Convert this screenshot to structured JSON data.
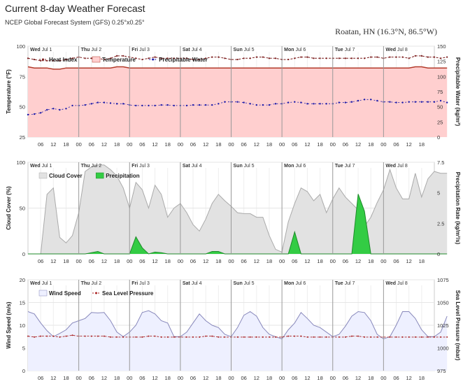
{
  "header": {
    "title": "Current 8-day Weather Forecast",
    "subtitle": "NCEP Global Forecast System (GFS) 0.25°x0.25°",
    "location": "Roatan, HN (16.3°N, 86.5°W)"
  },
  "days": [
    {
      "dow": "Wed",
      "date": "Jul 1"
    },
    {
      "dow": "Thu",
      "date": "Jul 2"
    },
    {
      "dow": "Fri",
      "date": "Jul 3"
    },
    {
      "dow": "Sat",
      "date": "Jul 4"
    },
    {
      "dow": "Sun",
      "date": "Jul 5"
    },
    {
      "dow": "Mon",
      "date": "Jul 6"
    },
    {
      "dow": "Tue",
      "date": "Jul 7"
    },
    {
      "dow": "Wed",
      "date": "Jul 8"
    }
  ],
  "hour_ticks": [
    "06",
    "12",
    "18",
    "00"
  ],
  "colors": {
    "heat_index": "#7a1a1a",
    "temperature_fill": "#ffcfcf",
    "temperature_line": "#b23a2a",
    "precipitable_water": "#1a1aaa",
    "cloud_fill": "#e2e2e2",
    "cloud_line": "#aaaaaa",
    "precip_fill": "#33cc44",
    "precip_line": "#1e8a2a",
    "wind_fill": "#eef0ff",
    "wind_line": "#8888bb",
    "pressure": "#aa2222"
  },
  "chart_data": [
    {
      "type": "line",
      "name": "temperature-panel",
      "x_start": "2020-07-01T00:00",
      "x_step_hours": 3,
      "ylabel": "Temperature (°F)",
      "ylim": [
        25,
        100
      ],
      "y_ticks": [
        25,
        50,
        75,
        100
      ],
      "y2label": "Precipitable Water (kg/m²)",
      "y2lim": [
        0,
        150
      ],
      "y2_ticks": [
        0,
        25,
        50,
        75,
        100,
        125,
        150
      ],
      "legend": [
        "Heat Index",
        "Temperature",
        "Precipitable Water"
      ],
      "legend_position": "top-left",
      "series": [
        {
          "name": "Heat Index",
          "axis": "left",
          "values": [
            90,
            89,
            88,
            88,
            88,
            88,
            89,
            90,
            91,
            90,
            90,
            90,
            89,
            90,
            92,
            92,
            91,
            90,
            89,
            90,
            91,
            90,
            90,
            90,
            90,
            90,
            89,
            89,
            90,
            91,
            91,
            90,
            89,
            89,
            90,
            90,
            91,
            91,
            90,
            90,
            89,
            89,
            90,
            91,
            91,
            90,
            90,
            90,
            90,
            90,
            90,
            90,
            90,
            90,
            91,
            91,
            90,
            91,
            91,
            91,
            90,
            92,
            92,
            91,
            91,
            90,
            91
          ]
        },
        {
          "name": "Temperature",
          "axis": "left",
          "values": [
            83,
            82,
            82,
            82,
            81,
            81,
            82,
            82,
            82,
            82,
            82,
            82,
            82,
            82,
            83,
            83,
            82,
            82,
            82,
            82,
            82,
            82,
            82,
            82,
            82,
            82,
            82,
            82,
            82,
            82,
            82,
            82,
            82,
            82,
            82,
            82,
            82,
            82,
            82,
            82,
            82,
            82,
            82,
            82,
            82,
            82,
            82,
            82,
            82,
            82,
            82,
            82,
            82,
            82,
            82,
            82,
            82,
            82,
            82,
            82,
            82,
            83,
            83,
            82,
            82,
            82,
            82
          ]
        },
        {
          "name": "Precipitable Water",
          "axis": "right",
          "values": [
            37,
            38,
            40,
            45,
            47,
            45,
            47,
            52,
            52,
            53,
            55,
            57,
            57,
            56,
            55,
            55,
            53,
            52,
            52,
            52,
            52,
            53,
            53,
            52,
            52,
            52,
            53,
            53,
            53,
            53,
            55,
            58,
            58,
            58,
            57,
            55,
            53,
            53,
            53,
            55,
            55,
            57,
            58,
            57,
            55,
            55,
            55,
            55,
            55,
            57,
            57,
            58,
            60,
            62,
            62,
            60,
            58,
            58,
            57,
            57,
            58,
            58,
            58,
            58,
            58,
            60,
            57
          ]
        }
      ]
    },
    {
      "type": "area",
      "name": "cloud-panel",
      "x_start": "2020-07-01T00:00",
      "x_step_hours": 3,
      "ylabel": "Cloud Cover (%)",
      "ylim": [
        0,
        100
      ],
      "y_ticks": [
        0,
        50,
        100
      ],
      "y2label": "Precipitation Rate (kg/m²/s)",
      "y2lim": [
        0,
        7.5
      ],
      "y2_ticks": [
        0,
        2.5,
        5,
        7.5
      ],
      "legend": [
        "Cloud Cover",
        "Precipitation"
      ],
      "legend_position": "top-left",
      "series": [
        {
          "name": "Cloud Cover",
          "axis": "left",
          "values": [
            0,
            0,
            0,
            65,
            72,
            18,
            12,
            20,
            45,
            90,
            95,
            97,
            97,
            92,
            85,
            72,
            50,
            78,
            70,
            50,
            75,
            65,
            40,
            50,
            55,
            45,
            32,
            25,
            38,
            55,
            65,
            58,
            52,
            45,
            44,
            44,
            40,
            40,
            20,
            5,
            2,
            35,
            55,
            72,
            68,
            58,
            65,
            45,
            60,
            72,
            62,
            55,
            48,
            30,
            40,
            56,
            70,
            92,
            72,
            60,
            60,
            88,
            62,
            82,
            90,
            88,
            88
          ]
        },
        {
          "name": "Precipitation",
          "axis": "right",
          "values": [
            0,
            0,
            0,
            0,
            0,
            0,
            0,
            0,
            0,
            0,
            0.1,
            0.2,
            0,
            0,
            0,
            0,
            0,
            1.4,
            0.5,
            0,
            0.15,
            0.1,
            0,
            0,
            0,
            0,
            0,
            0,
            0,
            0.2,
            0.2,
            0,
            0,
            0,
            0,
            0,
            0,
            0,
            0,
            0,
            0,
            0,
            1.8,
            0,
            0,
            0,
            0,
            0,
            0,
            0,
            0,
            0,
            4.9,
            3.5,
            0,
            0,
            0,
            0,
            0,
            0,
            0,
            0,
            0,
            0,
            0,
            0,
            0
          ]
        }
      ]
    },
    {
      "type": "area",
      "name": "wind-panel",
      "x_start": "2020-07-01T00:00",
      "x_step_hours": 3,
      "ylabel": "Wind Speed (m/s)",
      "ylim": [
        0,
        20
      ],
      "y_ticks": [
        0,
        5,
        10,
        15,
        20
      ],
      "y2label": "Sea Level Pressure (mbar)",
      "y2lim": [
        975,
        1075
      ],
      "y2_ticks": [
        975,
        1000,
        1025,
        1050,
        1075
      ],
      "legend": [
        "Wind Speed",
        "Sea Level Pressure"
      ],
      "legend_position": "top-left",
      "series": [
        {
          "name": "Wind Speed",
          "axis": "left",
          "values": [
            13,
            12.5,
            10.5,
            8.8,
            7.5,
            8.2,
            9,
            10.5,
            11,
            11.5,
            12.8,
            12.7,
            12.8,
            11,
            8.5,
            7.5,
            8.5,
            10,
            12.8,
            13.2,
            12.5,
            11,
            10.5,
            7.5,
            7.5,
            8.5,
            10.5,
            12.5,
            11,
            10,
            9.5,
            8,
            7.5,
            9.5,
            12.2,
            13,
            12,
            9.5,
            8,
            7.5,
            7,
            9,
            10.5,
            12.8,
            11.5,
            10,
            9.5,
            8.5,
            7.5,
            8,
            9.8,
            12,
            13,
            12.8,
            11,
            8,
            7,
            7.5,
            10,
            13,
            13,
            11.5,
            9,
            7.5,
            7.5,
            8.5,
            12
          ]
        },
        {
          "name": "Sea Level Pressure",
          "axis": "right",
          "values": [
            1013,
            1012,
            1013,
            1013,
            1013,
            1012,
            1013,
            1014,
            1013,
            1013,
            1013,
            1013,
            1013,
            1012,
            1012,
            1012,
            1012,
            1012,
            1012,
            1013,
            1013,
            1012,
            1012,
            1012,
            1012,
            1012,
            1012,
            1012,
            1013,
            1013,
            1012,
            1012,
            1012,
            1012,
            1012,
            1012,
            1012,
            1012,
            1012,
            1012,
            1012,
            1013,
            1013,
            1013,
            1012,
            1012,
            1012,
            1012,
            1012,
            1012,
            1012,
            1013,
            1013,
            1012,
            1012,
            1012,
            1012,
            1012,
            1012,
            1012,
            1012,
            1012,
            1012,
            1012,
            1012,
            1012,
            1012
          ]
        }
      ]
    }
  ]
}
